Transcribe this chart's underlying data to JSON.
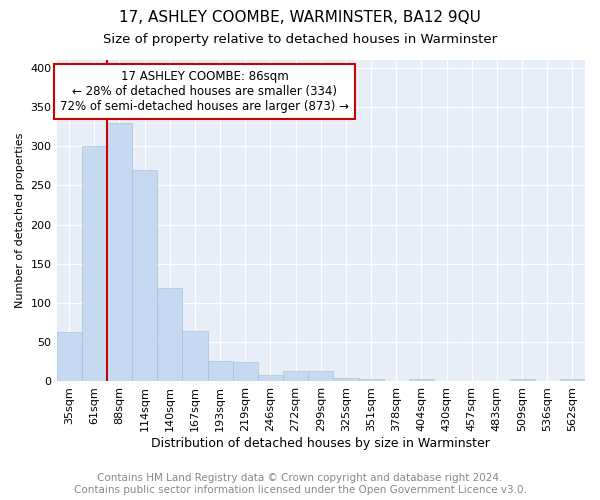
{
  "title": "17, ASHLEY COOMBE, WARMINSTER, BA12 9QU",
  "subtitle": "Size of property relative to detached houses in Warminster",
  "xlabel": "Distribution of detached houses by size in Warminster",
  "ylabel": "Number of detached properties",
  "categories": [
    "35sqm",
    "61sqm",
    "88sqm",
    "114sqm",
    "140sqm",
    "167sqm",
    "193sqm",
    "219sqm",
    "246sqm",
    "272sqm",
    "299sqm",
    "325sqm",
    "351sqm",
    "378sqm",
    "404sqm",
    "430sqm",
    "457sqm",
    "483sqm",
    "509sqm",
    "536sqm",
    "562sqm"
  ],
  "values": [
    63,
    300,
    330,
    270,
    119,
    64,
    26,
    25,
    8,
    13,
    13,
    4,
    3,
    0,
    3,
    0,
    0,
    0,
    3,
    0,
    3
  ],
  "bar_color": "#c5d9f0",
  "bar_edge_color": "#a0bcd8",
  "marker_index": 2,
  "marker_color": "#cc0000",
  "ylim": [
    0,
    410
  ],
  "yticks": [
    0,
    50,
    100,
    150,
    200,
    250,
    300,
    350,
    400
  ],
  "annotation_title": "17 ASHLEY COOMBE: 86sqm",
  "annotation_line1": "← 28% of detached houses are smaller (334)",
  "annotation_line2": "72% of semi-detached houses are larger (873) →",
  "annotation_box_color": "#cc0000",
  "footer_line1": "Contains HM Land Registry data © Crown copyright and database right 2024.",
  "footer_line2": "Contains public sector information licensed under the Open Government Licence v3.0.",
  "bg_color": "#e8eef8",
  "grid_color": "#ffffff",
  "title_fontsize": 11,
  "subtitle_fontsize": 9.5,
  "axis_fontsize": 8,
  "ylabel_fontsize": 8,
  "xlabel_fontsize": 9,
  "footer_fontsize": 7.5,
  "annotation_fontsize": 8.5
}
